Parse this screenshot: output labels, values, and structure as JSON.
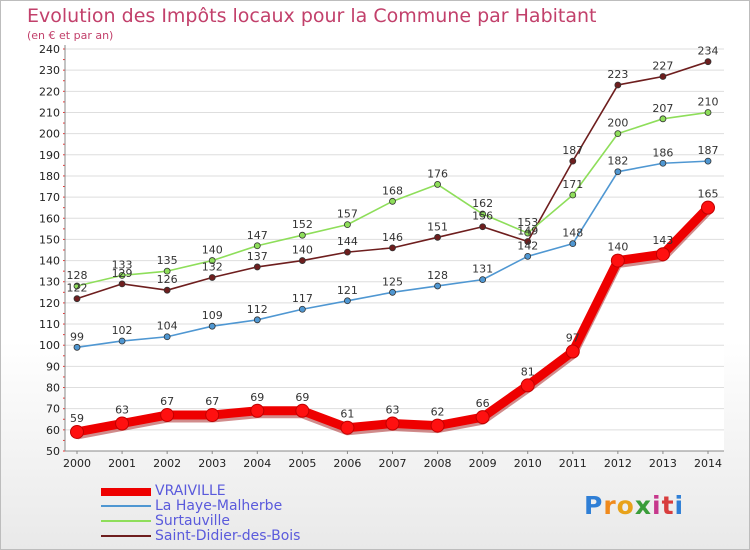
{
  "title": "Evolution des Impôts locaux pour la Commune par Habitant",
  "subtitle": "(en € et par an)",
  "logo": {
    "letters": [
      "P",
      "r",
      "o",
      "x",
      "i",
      "t",
      "i"
    ],
    "colors": [
      "#2f7fd6",
      "#f08a1c",
      "#e8a21a",
      "#3a9d3a",
      "#c6378c",
      "#d83d3d",
      "#2f7fd6"
    ]
  },
  "chart_data": {
    "type": "line",
    "title": "Evolution des Impôts locaux pour la Commune par Habitant",
    "subtitle": "(en € et par an)",
    "xlabel": "",
    "ylabel": "",
    "ylim": [
      50,
      240
    ],
    "yticks": [
      "50",
      "60",
      "70",
      "80",
      "90",
      "100",
      "110",
      "120",
      "130",
      "140",
      "150",
      "160",
      "170",
      "180",
      "190",
      "200",
      "210",
      "220",
      "230",
      "240"
    ],
    "categories": [
      "2000",
      "2001",
      "2002",
      "2003",
      "2004",
      "2005",
      "2006",
      "2007",
      "2008",
      "2009",
      "2010",
      "2011",
      "2012",
      "2013",
      "2014"
    ],
    "series": [
      {
        "name": "VRAIVILLE",
        "color": "#ee0000",
        "values": [
          59,
          63,
          67,
          67,
          69,
          69,
          61,
          63,
          62,
          66,
          81,
          97,
          140,
          143,
          165
        ]
      },
      {
        "name": "La Haye-Malherbe",
        "color": "#4f97d2",
        "values": [
          99,
          102,
          104,
          109,
          112,
          117,
          121,
          125,
          128,
          131,
          142,
          148,
          182,
          186,
          187
        ]
      },
      {
        "name": "Surtauville",
        "color": "#8ede5a",
        "values": [
          128,
          133,
          135,
          140,
          147,
          152,
          157,
          168,
          176,
          162,
          153,
          171,
          200,
          207,
          210
        ]
      },
      {
        "name": "Saint-Didier-des-Bois",
        "color": "#6e1e1e",
        "values": [
          122,
          129,
          126,
          132,
          137,
          140,
          144,
          146,
          151,
          156,
          149,
          187,
          223,
          227,
          234
        ]
      }
    ],
    "legend": "bottom-left"
  }
}
